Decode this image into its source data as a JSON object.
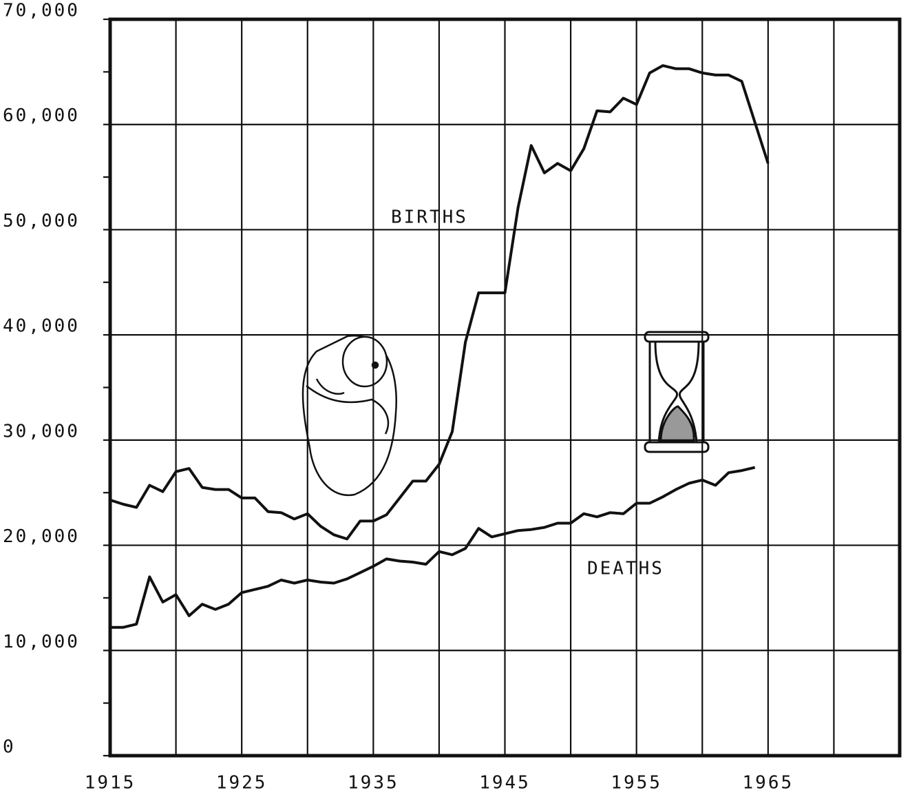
{
  "chart_data": {
    "type": "line",
    "x": [
      1915,
      1916,
      1917,
      1918,
      1919,
      1920,
      1921,
      1922,
      1923,
      1924,
      1925,
      1926,
      1927,
      1928,
      1929,
      1930,
      1931,
      1932,
      1933,
      1934,
      1935,
      1936,
      1937,
      1938,
      1939,
      1940,
      1941,
      1942,
      1943,
      1944,
      1945,
      1946,
      1947,
      1948,
      1949,
      1950,
      1951,
      1952,
      1953,
      1954,
      1955,
      1956,
      1957,
      1958,
      1959,
      1960,
      1961,
      1962,
      1963,
      1964,
      1965
    ],
    "series": [
      {
        "name": "BIRTHS",
        "color": "#111111",
        "values": [
          24300,
          23900,
          23600,
          25700,
          25100,
          27000,
          27300,
          25500,
          25300,
          25300,
          24500,
          24500,
          23200,
          23100,
          22500,
          23000,
          21800,
          21000,
          20600,
          22300,
          22300,
          22900,
          24500,
          26100,
          26100,
          27700,
          30800,
          39300,
          44000,
          44000,
          44000,
          52100,
          58000,
          55400,
          56300,
          55600,
          57700,
          61300,
          61200,
          62500,
          61900,
          64900,
          65600,
          65300,
          65300,
          64900,
          64700,
          64700,
          64100,
          60200,
          56300
        ]
      },
      {
        "name": "DEATHS",
        "color": "#111111",
        "values": [
          12200,
          12200,
          12500,
          17000,
          14600,
          15300,
          13300,
          14400,
          13900,
          14400,
          15500,
          15800,
          16100,
          16700,
          16400,
          16700,
          16500,
          16400,
          16800,
          17400,
          18000,
          18700,
          18500,
          18400,
          18200,
          19400,
          19100,
          19700,
          21600,
          20800,
          21100,
          21400,
          21500,
          21700,
          22100,
          22100,
          23000,
          22700,
          23100,
          23000,
          24000,
          24000,
          24600,
          25300,
          25900,
          26200,
          25700,
          26900,
          27100,
          27400,
          null
        ]
      }
    ],
    "xlim": [
      1915,
      1975
    ],
    "xticks": [
      1915,
      1925,
      1935,
      1945,
      1955,
      1965
    ],
    "x_minor_ticks": [
      1920,
      1930,
      1940,
      1950,
      1960,
      1970
    ],
    "ylim": [
      0,
      70000
    ],
    "yticks": [
      0,
      {
        "value": 10000,
        "label": "10,000"
      },
      {
        "value": 20000,
        "label": "20,000"
      },
      {
        "value": 30000,
        "label": "30,000"
      },
      {
        "value": 40000,
        "label": "40,000"
      },
      {
        "value": 50000,
        "label": "50,000"
      },
      {
        "value": 60000,
        "label": "60,000"
      },
      {
        "value": 70000,
        "label": "70,000"
      }
    ],
    "y_minor_ticks": [
      5000,
      15000,
      25000,
      35000,
      45000,
      55000,
      65000
    ],
    "grid": true
  }
}
